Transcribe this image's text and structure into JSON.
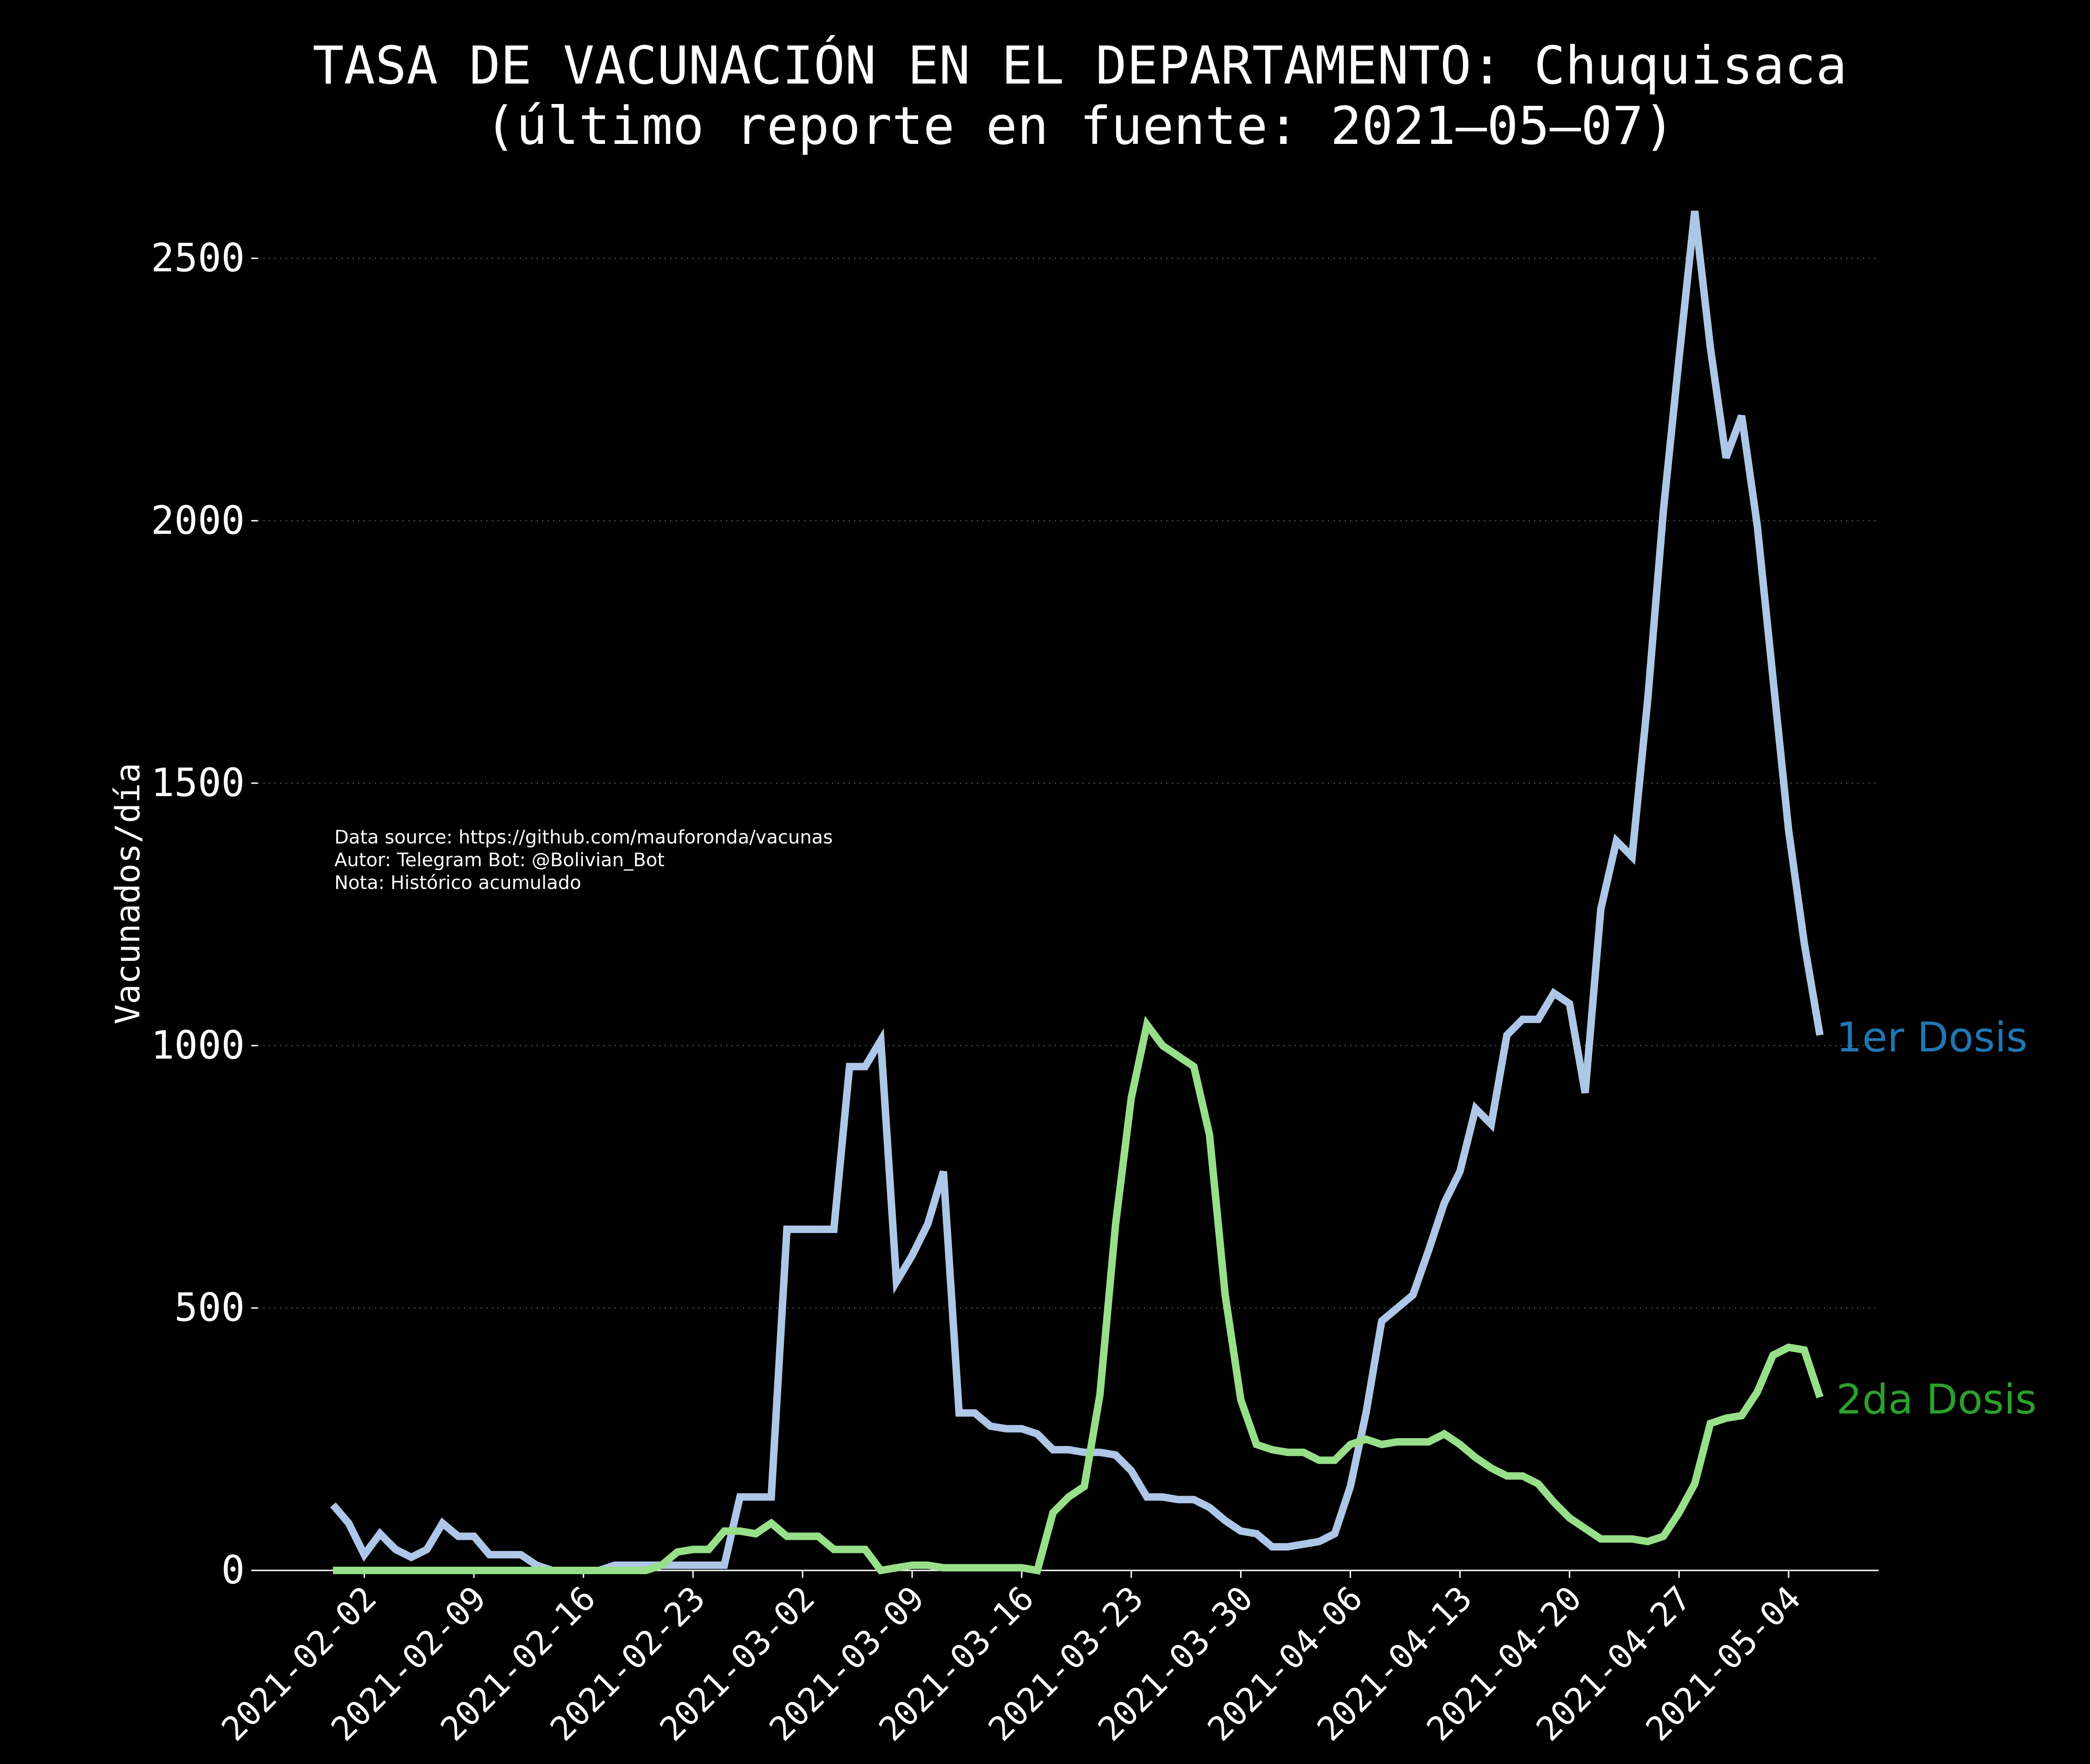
{
  "chart_data": {
    "type": "line",
    "title": "TASA DE VACUNACIÓN EN EL DEPARTAMENTO: Chuquisaca",
    "subtitle": "(último reporte en fuente: 2021–05–07)",
    "ylabel": "Vacunados/día",
    "xlabel": "",
    "ylim": [
      0,
      2600
    ],
    "yticks": [
      0,
      500,
      1000,
      1500,
      2000,
      2500
    ],
    "grid": "horizontal-dotted",
    "xticks": [
      "2021-02-02",
      "2021-02-09",
      "2021-02-16",
      "2021-02-23",
      "2021-03-02",
      "2021-03-09",
      "2021-03-16",
      "2021-03-23",
      "2021-03-30",
      "2021-04-06",
      "2021-04-13",
      "2021-04-20",
      "2021-04-27",
      "2021-05-04"
    ],
    "x_start": "2021-01-31",
    "annotation": [
      "Data source: https://github.com/mauforonda/vacunas",
      "Autor: Telegram Bot: @Bolivian_Bot",
      "Nota: Histórico acumulado"
    ],
    "series": [
      {
        "name": "1er Dosis",
        "color": "#aec7e8",
        "label_color": "#1f77b4",
        "values": [
          125,
          90,
          30,
          70,
          40,
          25,
          40,
          90,
          65,
          65,
          30,
          30,
          30,
          10,
          0,
          0,
          0,
          0,
          10,
          10,
          10,
          10,
          10,
          10,
          10,
          10,
          140,
          140,
          140,
          650,
          650,
          650,
          650,
          960,
          960,
          1010,
          550,
          600,
          660,
          760,
          300,
          300,
          275,
          270,
          270,
          260,
          230,
          230,
          225,
          225,
          220,
          190,
          140,
          140,
          135,
          135,
          120,
          95,
          75,
          70,
          45,
          45,
          50,
          55,
          70,
          160,
          300,
          475,
          500,
          525,
          610,
          700,
          760,
          880,
          850,
          1020,
          1050,
          1050,
          1100,
          1080,
          910,
          1260,
          1390,
          1360,
          1660,
          2020,
          2310,
          2590,
          2330,
          2120,
          2200,
          1990,
          1700,
          1410,
          1195,
          1020
        ]
      },
      {
        "name": "2da Dosis",
        "color": "#98df8a",
        "label_color": "#2ca02c",
        "values": [
          0,
          0,
          0,
          0,
          0,
          0,
          0,
          0,
          0,
          0,
          0,
          0,
          0,
          0,
          0,
          0,
          0,
          0,
          0,
          0,
          0,
          10,
          35,
          40,
          40,
          75,
          75,
          70,
          90,
          65,
          65,
          65,
          40,
          40,
          40,
          0,
          5,
          10,
          10,
          5,
          5,
          5,
          5,
          5,
          5,
          0,
          110,
          140,
          160,
          335,
          660,
          900,
          1040,
          1000,
          980,
          960,
          830,
          525,
          325,
          240,
          230,
          225,
          225,
          210,
          210,
          240,
          250,
          240,
          245,
          245,
          245,
          260,
          240,
          215,
          195,
          180,
          180,
          165,
          130,
          100,
          80,
          60,
          60,
          60,
          55,
          65,
          110,
          165,
          280,
          290,
          295,
          340,
          410,
          425,
          420,
          330
        ]
      }
    ]
  }
}
